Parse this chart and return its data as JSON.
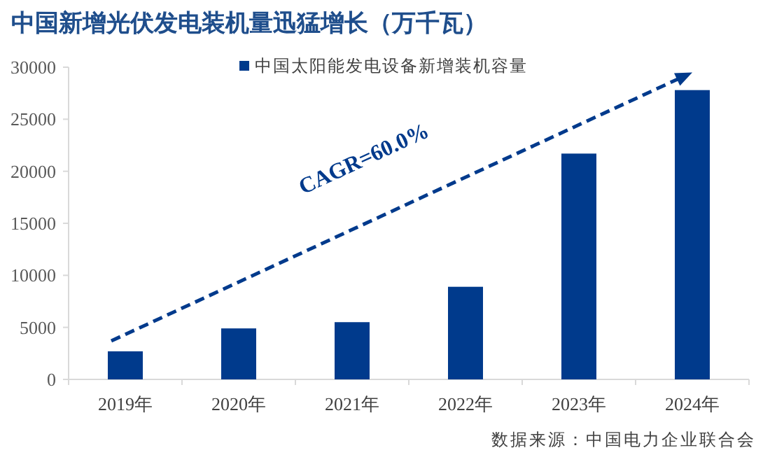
{
  "chart_data": {
    "type": "bar",
    "title": "中国新增光伏发电装机量迅猛增长（万千瓦）",
    "categories": [
      "2019年",
      "2020年",
      "2021年",
      "2022年",
      "2023年",
      "2024年"
    ],
    "series": [
      {
        "name": "中国太阳能发电设备新增装机容量",
        "color": "#003a8c",
        "values": [
          2700,
          4900,
          5500,
          8900,
          21700,
          27800
        ]
      }
    ],
    "ylim": [
      0,
      30000
    ],
    "yticks": [
      0,
      5000,
      10000,
      15000,
      20000,
      25000,
      30000
    ],
    "grid": false,
    "legend": "top",
    "annotations": [
      "CAGR=60.0%",
      "数据来源：中国电力企业联合会"
    ]
  }
}
